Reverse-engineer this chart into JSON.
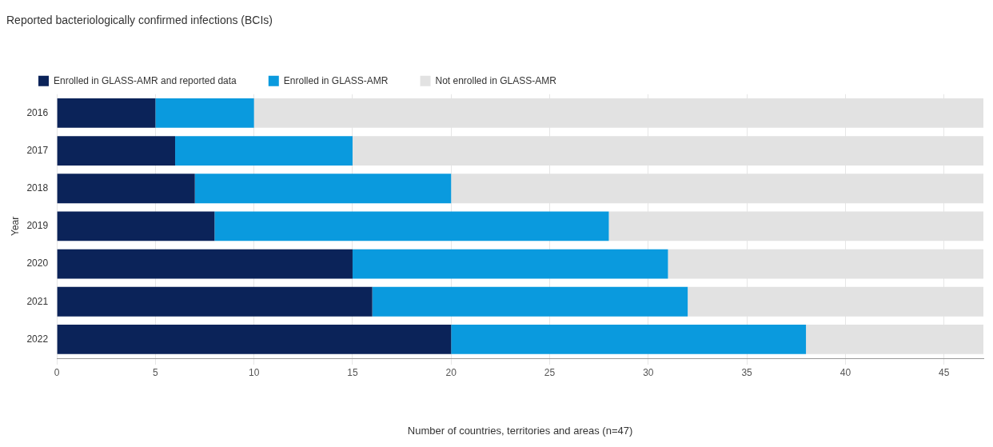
{
  "chart_data": {
    "type": "bar",
    "orientation": "horizontal",
    "stacked": true,
    "title": "Reported bacteriologically confirmed infections (BCIs)",
    "xlabel": "Number of countries, territories and areas (n=47)",
    "ylabel": "Year",
    "categories": [
      "2016",
      "2017",
      "2018",
      "2019",
      "2020",
      "2021",
      "2022"
    ],
    "series": [
      {
        "name": "Enrolled in GLASS-AMR and reported data",
        "color": "#0b2359",
        "values": [
          5,
          6,
          7,
          8,
          15,
          16,
          20
        ]
      },
      {
        "name": "Enrolled in GLASS-AMR",
        "color": "#0a9ade",
        "values": [
          5,
          9,
          13,
          20,
          16,
          16,
          18
        ]
      },
      {
        "name": "Not enrolled in GLASS-AMR",
        "color": "#e2e2e2",
        "values": [
          37,
          32,
          27,
          19,
          16,
          15,
          9
        ]
      }
    ],
    "xlim": [
      0,
      47
    ],
    "xticks": [
      0,
      5,
      10,
      15,
      20,
      25,
      30,
      35,
      40,
      45
    ],
    "grid": "x",
    "legend": "top left"
  }
}
